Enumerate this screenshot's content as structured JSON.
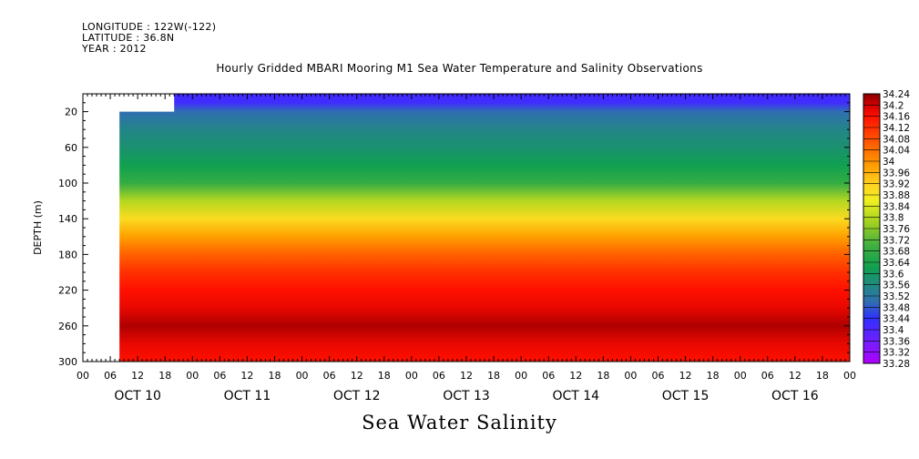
{
  "header": {
    "longitude": "LONGITUDE : 122W(-122)",
    "latitude": "LATITUDE : 36.8N",
    "year": "YEAR : 2012"
  },
  "chart_data": {
    "type": "heatmap",
    "title": "Hourly Gridded MBARI Mooring M1 Sea Water Temperature and Salinity Observations",
    "subtitle": "Sea Water Salinity",
    "ylabel": "DEPTH (m)",
    "ylim": [
      300,
      0
    ],
    "y_ticks": [
      20,
      60,
      100,
      140,
      180,
      220,
      260,
      300
    ],
    "x_hour_ticks": [
      "00",
      "06",
      "12",
      "18",
      "00",
      "06",
      "12",
      "18",
      "00",
      "06",
      "12",
      "18",
      "00",
      "06",
      "12",
      "18",
      "00",
      "06",
      "12",
      "18",
      "00",
      "06",
      "12",
      "18",
      "00",
      "06",
      "12",
      "18",
      "00"
    ],
    "day_labels": [
      "OCT 10",
      "OCT 11",
      "OCT 12",
      "OCT 13",
      "OCT 14",
      "OCT 15",
      "OCT 16"
    ],
    "colorbar_levels": [
      "34.24",
      "34.2",
      "34.16",
      "34.12",
      "34.08",
      "34.04",
      "34",
      "33.96",
      "33.92",
      "33.88",
      "33.84",
      "33.8",
      "33.76",
      "33.72",
      "33.68",
      "33.64",
      "33.6",
      "33.56",
      "33.52",
      "33.48",
      "33.44",
      "33.4",
      "33.36",
      "33.32",
      "33.28"
    ],
    "colors": {
      "low": "#a020f0",
      "mid_low": "#2020ff",
      "mid": "#20a060",
      "mid_high": "#f0f020",
      "high": "#ff2000",
      "max": "#8b0000"
    },
    "data_start": "OCT 10 08",
    "profile": {
      "depths": [
        10,
        20,
        40,
        60,
        80,
        100,
        120,
        140,
        160,
        180,
        200,
        220,
        240,
        260,
        280,
        300
      ],
      "salinity": [
        33.42,
        33.5,
        33.55,
        33.58,
        33.62,
        33.68,
        33.8,
        33.9,
        33.98,
        34.06,
        34.12,
        34.16,
        34.18,
        34.22,
        34.18,
        34.16
      ]
    }
  }
}
